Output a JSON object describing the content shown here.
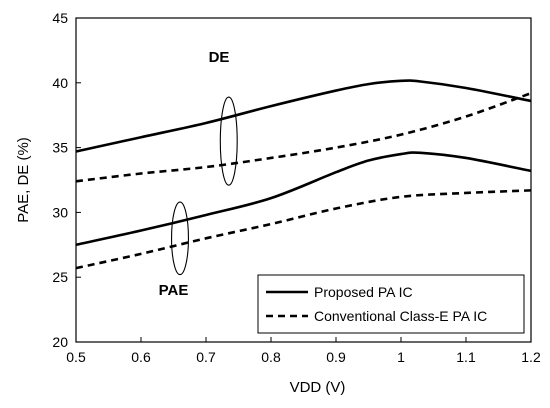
{
  "chart_data": {
    "type": "line",
    "xlabel": "VDD (V)",
    "ylabel": "PAE, DE (%)",
    "xlim": [
      0.5,
      1.2
    ],
    "ylim": [
      20,
      45
    ],
    "x_ticks": [
      0.5,
      0.6,
      0.7,
      0.8,
      0.9,
      1.0,
      1.1,
      1.2
    ],
    "x_tick_labels": [
      "0.5",
      "0.6",
      "0.7",
      "0.8",
      "0.9",
      "1",
      "1.1",
      "1.2"
    ],
    "y_ticks": [
      20,
      25,
      30,
      35,
      40,
      45
    ],
    "y_tick_labels": [
      "20",
      "25",
      "30",
      "35",
      "40",
      "45"
    ],
    "grid": false,
    "legend_position": "bottom-right",
    "series": [
      {
        "name": "Proposed PA IC",
        "style": "solid",
        "group": "DE",
        "x": [
          0.5,
          0.6,
          0.7,
          0.8,
          0.9,
          0.95,
          1.0,
          1.03,
          1.1,
          1.2
        ],
        "y": [
          34.7,
          35.8,
          36.9,
          38.2,
          39.4,
          39.9,
          40.15,
          40.1,
          39.6,
          38.6
        ]
      },
      {
        "name": "Conventional Class-E PA IC",
        "style": "dashed",
        "group": "DE",
        "x": [
          0.5,
          0.6,
          0.7,
          0.8,
          0.9,
          1.0,
          1.1,
          1.2
        ],
        "y": [
          32.4,
          33.0,
          33.5,
          34.2,
          35.0,
          36.0,
          37.4,
          39.2
        ]
      },
      {
        "name": "Proposed PA IC",
        "style": "solid",
        "group": "PAE",
        "x": [
          0.5,
          0.6,
          0.7,
          0.8,
          0.9,
          0.95,
          1.0,
          1.03,
          1.1,
          1.2
        ],
        "y": [
          27.5,
          28.6,
          29.8,
          31.1,
          33.1,
          34.0,
          34.5,
          34.6,
          34.2,
          33.2
        ]
      },
      {
        "name": "Conventional Class-E PA IC",
        "style": "dashed",
        "group": "PAE",
        "x": [
          0.5,
          0.6,
          0.7,
          0.8,
          0.9,
          1.0,
          1.1,
          1.2
        ],
        "y": [
          25.7,
          26.8,
          28.0,
          29.1,
          30.3,
          31.2,
          31.5,
          31.7
        ]
      }
    ],
    "legend": [
      {
        "label": "Proposed PA IC",
        "style": "solid"
      },
      {
        "label": "Conventional Class-E PA IC",
        "style": "dashed"
      }
    ],
    "annotations": [
      {
        "text": "DE",
        "ellipse_center": [
          0.735,
          35.5
        ],
        "ellipse_radii": [
          0.013,
          3.4
        ],
        "text_at": [
          0.72,
          42.0
        ]
      },
      {
        "text": "PAE",
        "ellipse_center": [
          0.66,
          28.0
        ],
        "ellipse_radii": [
          0.013,
          2.8
        ],
        "text_at": [
          0.65,
          24.0
        ]
      }
    ]
  }
}
